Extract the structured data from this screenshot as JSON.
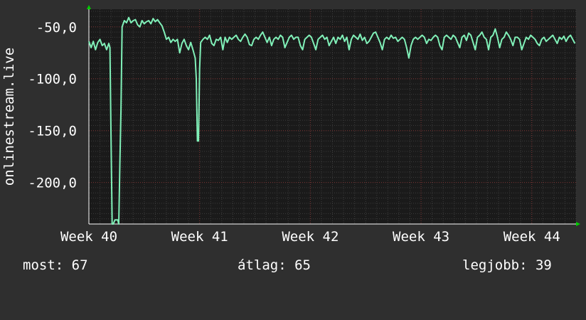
{
  "chart_data": {
    "type": "line",
    "ylabel": "onlinestream.live",
    "y_ticks": [
      -50,
      -100,
      -150,
      -200
    ],
    "y_tick_labels": [
      "-50,0",
      "-100,0",
      "-150,0",
      "-200,0"
    ],
    "ylim": [
      -240,
      -33
    ],
    "x_tick_labels": [
      "Week 40",
      "Week 41",
      "Week 42",
      "Week 43",
      "Week 44"
    ],
    "xlim": [
      0,
      4.4
    ],
    "grid": true,
    "colors": {
      "background": "#2f2f2f",
      "plot": "#1a1a1a",
      "line": "#80f0b8",
      "grid_major": "#7a3030",
      "grid_minor": "#3c3c3c",
      "arrow": "#00cc00"
    },
    "series": [
      {
        "values": [
          [
            0.0,
            -64
          ],
          [
            0.02,
            -70
          ],
          [
            0.04,
            -64
          ],
          [
            0.06,
            -72
          ],
          [
            0.08,
            -65
          ],
          [
            0.1,
            -62
          ],
          [
            0.12,
            -68
          ],
          [
            0.14,
            -66
          ],
          [
            0.16,
            -72
          ],
          [
            0.18,
            -66
          ],
          [
            0.19,
            -70
          ],
          [
            0.2,
            -155
          ],
          [
            0.21,
            -240
          ],
          [
            0.22,
            -240
          ],
          [
            0.235,
            -236
          ],
          [
            0.24,
            -236
          ],
          [
            0.25,
            -236
          ],
          [
            0.26,
            -236
          ],
          [
            0.27,
            -240
          ],
          [
            0.28,
            -180
          ],
          [
            0.29,
            -130
          ],
          [
            0.3,
            -50
          ],
          [
            0.32,
            -44
          ],
          [
            0.34,
            -46
          ],
          [
            0.36,
            -41
          ],
          [
            0.38,
            -46
          ],
          [
            0.4,
            -44
          ],
          [
            0.42,
            -43
          ],
          [
            0.44,
            -48
          ],
          [
            0.46,
            -50
          ],
          [
            0.48,
            -44
          ],
          [
            0.5,
            -47
          ],
          [
            0.52,
            -45
          ],
          [
            0.54,
            -44
          ],
          [
            0.56,
            -47
          ],
          [
            0.58,
            -42
          ],
          [
            0.6,
            -45
          ],
          [
            0.62,
            -43
          ],
          [
            0.64,
            -46
          ],
          [
            0.66,
            -49
          ],
          [
            0.68,
            -55
          ],
          [
            0.7,
            -62
          ],
          [
            0.72,
            -60
          ],
          [
            0.74,
            -65
          ],
          [
            0.76,
            -62
          ],
          [
            0.78,
            -64
          ],
          [
            0.8,
            -62
          ],
          [
            0.82,
            -75
          ],
          [
            0.84,
            -66
          ],
          [
            0.86,
            -62
          ],
          [
            0.88,
            -68
          ],
          [
            0.9,
            -72
          ],
          [
            0.92,
            -65
          ],
          [
            0.94,
            -72
          ],
          [
            0.96,
            -80
          ],
          [
            0.97,
            -100
          ],
          [
            0.98,
            -160
          ],
          [
            0.99,
            -160
          ],
          [
            1.0,
            -90
          ],
          [
            1.01,
            -65
          ],
          [
            1.03,
            -62
          ],
          [
            1.05,
            -60
          ],
          [
            1.07,
            -62
          ],
          [
            1.09,
            -58
          ],
          [
            1.11,
            -66
          ],
          [
            1.13,
            -68
          ],
          [
            1.15,
            -62
          ],
          [
            1.17,
            -63
          ],
          [
            1.19,
            -60
          ],
          [
            1.21,
            -72
          ],
          [
            1.23,
            -60
          ],
          [
            1.25,
            -65
          ],
          [
            1.27,
            -60
          ],
          [
            1.29,
            -62
          ],
          [
            1.31,
            -60
          ],
          [
            1.33,
            -58
          ],
          [
            1.35,
            -62
          ],
          [
            1.37,
            -64
          ],
          [
            1.39,
            -60
          ],
          [
            1.41,
            -57
          ],
          [
            1.43,
            -60
          ],
          [
            1.45,
            -67
          ],
          [
            1.47,
            -68
          ],
          [
            1.49,
            -62
          ],
          [
            1.51,
            -60
          ],
          [
            1.53,
            -62
          ],
          [
            1.55,
            -58
          ],
          [
            1.57,
            -55
          ],
          [
            1.59,
            -60
          ],
          [
            1.61,
            -65
          ],
          [
            1.63,
            -60
          ],
          [
            1.65,
            -68
          ],
          [
            1.67,
            -62
          ],
          [
            1.69,
            -60
          ],
          [
            1.71,
            -62
          ],
          [
            1.73,
            -58
          ],
          [
            1.75,
            -60
          ],
          [
            1.77,
            -70
          ],
          [
            1.79,
            -65
          ],
          [
            1.81,
            -60
          ],
          [
            1.83,
            -58
          ],
          [
            1.85,
            -62
          ],
          [
            1.87,
            -60
          ],
          [
            1.89,
            -60
          ],
          [
            1.91,
            -68
          ],
          [
            1.93,
            -72
          ],
          [
            1.95,
            -62
          ],
          [
            1.97,
            -60
          ],
          [
            1.99,
            -58
          ],
          [
            2.01,
            -60
          ],
          [
            2.03,
            -66
          ],
          [
            2.05,
            -72
          ],
          [
            2.07,
            -62
          ],
          [
            2.09,
            -60
          ],
          [
            2.11,
            -58
          ],
          [
            2.13,
            -62
          ],
          [
            2.15,
            -60
          ],
          [
            2.17,
            -68
          ],
          [
            2.19,
            -64
          ],
          [
            2.21,
            -60
          ],
          [
            2.23,
            -66
          ],
          [
            2.25,
            -60
          ],
          [
            2.27,
            -62
          ],
          [
            2.29,
            -58
          ],
          [
            2.31,
            -64
          ],
          [
            2.33,
            -60
          ],
          [
            2.35,
            -72
          ],
          [
            2.37,
            -62
          ],
          [
            2.39,
            -58
          ],
          [
            2.41,
            -60
          ],
          [
            2.43,
            -62
          ],
          [
            2.45,
            -57
          ],
          [
            2.47,
            -63
          ],
          [
            2.49,
            -60
          ],
          [
            2.51,
            -66
          ],
          [
            2.53,
            -64
          ],
          [
            2.55,
            -60
          ],
          [
            2.57,
            -56
          ],
          [
            2.59,
            -55
          ],
          [
            2.61,
            -60
          ],
          [
            2.63,
            -65
          ],
          [
            2.65,
            -72
          ],
          [
            2.67,
            -62
          ],
          [
            2.69,
            -60
          ],
          [
            2.71,
            -62
          ],
          [
            2.73,
            -58
          ],
          [
            2.75,
            -61
          ],
          [
            2.77,
            -60
          ],
          [
            2.79,
            -64
          ],
          [
            2.81,
            -62
          ],
          [
            2.83,
            -60
          ],
          [
            2.85,
            -62
          ],
          [
            2.87,
            -70
          ],
          [
            2.89,
            -80
          ],
          [
            2.91,
            -68
          ],
          [
            2.93,
            -62
          ],
          [
            2.95,
            -60
          ],
          [
            2.97,
            -62
          ],
          [
            2.99,
            -60
          ],
          [
            3.01,
            -58
          ],
          [
            3.03,
            -60
          ],
          [
            3.05,
            -66
          ],
          [
            3.07,
            -62
          ],
          [
            3.09,
            -63
          ],
          [
            3.11,
            -60
          ],
          [
            3.13,
            -58
          ],
          [
            3.15,
            -60
          ],
          [
            3.17,
            -68
          ],
          [
            3.19,
            -72
          ],
          [
            3.21,
            -60
          ],
          [
            3.23,
            -58
          ],
          [
            3.25,
            -60
          ],
          [
            3.27,
            -62
          ],
          [
            3.29,
            -58
          ],
          [
            3.31,
            -60
          ],
          [
            3.33,
            -65
          ],
          [
            3.35,
            -70
          ],
          [
            3.37,
            -60
          ],
          [
            3.39,
            -58
          ],
          [
            3.41,
            -63
          ],
          [
            3.43,
            -56
          ],
          [
            3.45,
            -58
          ],
          [
            3.47,
            -65
          ],
          [
            3.49,
            -72
          ],
          [
            3.51,
            -60
          ],
          [
            3.53,
            -58
          ],
          [
            3.55,
            -55
          ],
          [
            3.57,
            -60
          ],
          [
            3.59,
            -62
          ],
          [
            3.61,
            -72
          ],
          [
            3.63,
            -60
          ],
          [
            3.65,
            -58
          ],
          [
            3.67,
            -52
          ],
          [
            3.69,
            -60
          ],
          [
            3.71,
            -70
          ],
          [
            3.73,
            -62
          ],
          [
            3.75,
            -60
          ],
          [
            3.77,
            -55
          ],
          [
            3.79,
            -58
          ],
          [
            3.81,
            -62
          ],
          [
            3.83,
            -68
          ],
          [
            3.85,
            -60
          ],
          [
            3.87,
            -60
          ],
          [
            3.89,
            -62
          ],
          [
            3.91,
            -72
          ],
          [
            3.93,
            -66
          ],
          [
            3.95,
            -60
          ],
          [
            3.97,
            -62
          ],
          [
            3.99,
            -58
          ],
          [
            4.01,
            -60
          ],
          [
            4.03,
            -62
          ],
          [
            4.05,
            -66
          ],
          [
            4.07,
            -68
          ],
          [
            4.09,
            -62
          ],
          [
            4.11,
            -60
          ],
          [
            4.13,
            -64
          ],
          [
            4.15,
            -62
          ],
          [
            4.17,
            -60
          ],
          [
            4.19,
            -58
          ],
          [
            4.21,
            -62
          ],
          [
            4.23,
            -66
          ],
          [
            4.25,
            -60
          ],
          [
            4.27,
            -62
          ],
          [
            4.29,
            -59
          ],
          [
            4.31,
            -64
          ],
          [
            4.33,
            -60
          ],
          [
            4.35,
            -58
          ],
          [
            4.37,
            -62
          ],
          [
            4.39,
            -66
          ]
        ]
      }
    ]
  },
  "footer": {
    "current": "most: 67",
    "average": "átlag: 65",
    "best": "legjobb: 39"
  }
}
